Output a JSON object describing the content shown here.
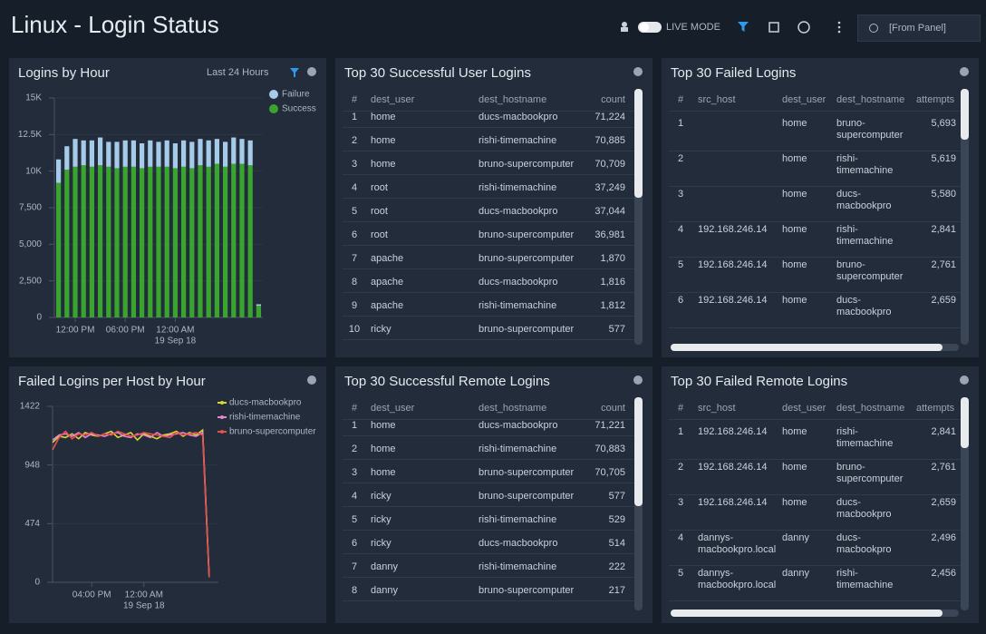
{
  "header": {
    "title": "Linux - Login Status",
    "live_mode": "LIVE MODE",
    "time_picker": "[From Panel]"
  },
  "chart_data": [
    {
      "type": "bar",
      "title": "Logins by Hour",
      "time_range": "Last 24 Hours",
      "stacked": true,
      "legend": "upper right",
      "grid": true,
      "categories": [
        null,
        null,
        "12:00 PM",
        null,
        null,
        null,
        null,
        null,
        "06:00 PM",
        null,
        null,
        null,
        null,
        null,
        "12:00 AM",
        null,
        null,
        null,
        null,
        null,
        null,
        null,
        null,
        null,
        null
      ],
      "date_label": "19 Sep 18",
      "series": [
        {
          "name": "Success",
          "color": "#3aa52e",
          "values": [
            9200,
            10100,
            10300,
            10400,
            10300,
            10400,
            10300,
            10200,
            10300,
            10300,
            10200,
            10300,
            10300,
            10300,
            10200,
            10300,
            10200,
            10400,
            10300,
            10500,
            10300,
            10500,
            10500,
            10400,
            800
          ]
        },
        {
          "name": "Failure",
          "color": "#a6cbe8",
          "values": [
            1600,
            1600,
            1900,
            1700,
            1800,
            1900,
            1700,
            1800,
            1800,
            1800,
            1700,
            1800,
            1700,
            1800,
            1700,
            1800,
            1800,
            1800,
            1800,
            1700,
            1700,
            1800,
            1700,
            1700,
            100
          ]
        }
      ],
      "ylim": [
        0,
        15000
      ],
      "yticks": [
        0,
        {
          "value": 2500,
          "label": "2,500"
        },
        {
          "value": 5000,
          "label": "5,000"
        },
        {
          "value": 7500,
          "label": "7,500"
        },
        {
          "value": 10000,
          "label": "10K"
        },
        {
          "value": 12500,
          "label": "12.5K"
        },
        {
          "value": 15000,
          "label": "15K"
        }
      ]
    },
    {
      "type": "line",
      "title": "Failed Logins per Host by Hour",
      "legend": "upper right",
      "grid": true,
      "categories": [
        null,
        null,
        null,
        null,
        null,
        null,
        "04:00 PM",
        null,
        null,
        null,
        null,
        null,
        null,
        null,
        "12:00 AM",
        null,
        null,
        null,
        null,
        null,
        null,
        null,
        null,
        null,
        null
      ],
      "date_label": "19 Sep 18",
      "series": [
        {
          "name": "ducs-macbookpro",
          "color": "#d8d636",
          "values": [
            1130,
            1180,
            1170,
            1200,
            1160,
            1210,
            1190,
            1180,
            1200,
            1220,
            1170,
            1190,
            1210,
            1150,
            1200,
            1180,
            1160,
            1190,
            1200,
            1220,
            1180,
            1210,
            1190,
            1230,
            50
          ]
        },
        {
          "name": "rishi-timemachine",
          "color": "#e586d2",
          "values": [
            1150,
            1190,
            1200,
            1180,
            1210,
            1170,
            1200,
            1190,
            1180,
            1200,
            1210,
            1180,
            1170,
            1200,
            1190,
            1170,
            1210,
            1180,
            1190,
            1200,
            1210,
            1190,
            1180,
            1210,
            45
          ]
        },
        {
          "name": "bruno-supercomputer",
          "color": "#e8514a",
          "values": [
            1070,
            1170,
            1220,
            1160,
            1200,
            1190,
            1210,
            1180,
            1200,
            1190,
            1220,
            1200,
            1180,
            1190,
            1210,
            1200,
            1190,
            1180,
            1170,
            1210,
            1190,
            1200,
            1210,
            1190,
            40
          ]
        }
      ],
      "ylim": [
        0,
        1422
      ],
      "yticks": [
        0,
        474,
        948,
        1422
      ]
    }
  ],
  "tables": [
    {
      "title": "Top 30 Successful User Logins",
      "columns": [
        "#",
        "dest_user",
        "dest_hostname",
        "count"
      ],
      "rows": [
        [
          "1",
          "home",
          "ducs-macbookpro",
          "71,224"
        ],
        [
          "2",
          "home",
          "rishi-timemachine",
          "70,885"
        ],
        [
          "3",
          "home",
          "bruno-supercomputer",
          "70,709"
        ],
        [
          "4",
          "root",
          "rishi-timemachine",
          "37,249"
        ],
        [
          "5",
          "root",
          "ducs-macbookpro",
          "37,044"
        ],
        [
          "6",
          "root",
          "bruno-supercomputer",
          "36,981"
        ],
        [
          "7",
          "apache",
          "bruno-supercomputer",
          "1,870"
        ],
        [
          "8",
          "apache",
          "ducs-macbookpro",
          "1,816"
        ],
        [
          "9",
          "apache",
          "rishi-timemachine",
          "1,812"
        ],
        [
          "10",
          "ricky",
          "bruno-supercomputer",
          "577"
        ]
      ]
    },
    {
      "title": "Top 30 Failed Logins",
      "columns": [
        "#",
        "src_host",
        "dest_user",
        "dest_hostname",
        "attempts"
      ],
      "rows": [
        [
          "1",
          null,
          "home",
          "bruno-supercomputer",
          "5,693"
        ],
        [
          "2",
          null,
          "home",
          "rishi-timemachine",
          "5,619"
        ],
        [
          "3",
          null,
          "home",
          "ducs-macbookpro",
          "5,580"
        ],
        [
          "4",
          "192.168.246.14",
          "home",
          "rishi-timemachine",
          "2,841"
        ],
        [
          "5",
          "192.168.246.14",
          "home",
          "bruno-supercomputer",
          "2,761"
        ],
        [
          "6",
          "192.168.246.14",
          "home",
          "ducs-macbookpro",
          "2,659"
        ]
      ]
    },
    {
      "title": "Top 30 Successful Remote Logins",
      "columns": [
        "#",
        "dest_user",
        "dest_hostname",
        "count"
      ],
      "rows": [
        [
          "1",
          "home",
          "ducs-macbookpro",
          "71,221"
        ],
        [
          "2",
          "home",
          "rishi-timemachine",
          "70,883"
        ],
        [
          "3",
          "home",
          "bruno-supercomputer",
          "70,705"
        ],
        [
          "4",
          "ricky",
          "bruno-supercomputer",
          "577"
        ],
        [
          "5",
          "ricky",
          "rishi-timemachine",
          "529"
        ],
        [
          "6",
          "ricky",
          "ducs-macbookpro",
          "514"
        ],
        [
          "7",
          "danny",
          "rishi-timemachine",
          "222"
        ],
        [
          "8",
          "danny",
          "bruno-supercomputer",
          "217"
        ]
      ]
    },
    {
      "title": "Top 30 Failed Remote Logins",
      "columns": [
        "#",
        "src_host",
        "dest_user",
        "dest_hostname",
        "attempts"
      ],
      "rows": [
        [
          "1",
          "192.168.246.14",
          "home",
          "rishi-timemachine",
          "2,841"
        ],
        [
          "2",
          "192.168.246.14",
          "home",
          "bruno-supercomputer",
          "2,761"
        ],
        [
          "3",
          "192.168.246.14",
          "home",
          "ducs-macbookpro",
          "2,659"
        ],
        [
          "4",
          "dannys-macbookpro.local",
          "danny",
          "ducs-macbookpro",
          "2,496"
        ],
        [
          "5",
          "dannys-macbookpro.local",
          "danny",
          "rishi-timemachine",
          "2,456"
        ]
      ]
    }
  ]
}
